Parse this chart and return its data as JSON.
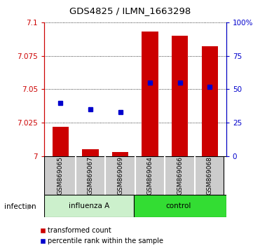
{
  "title": "GDS4825 / ILMN_1663298",
  "samples": [
    "GSM869065",
    "GSM869067",
    "GSM869069",
    "GSM869064",
    "GSM869066",
    "GSM869068"
  ],
  "transformed_counts": [
    7.022,
    7.005,
    7.003,
    7.093,
    7.09,
    7.082
  ],
  "percentile_ranks": [
    7.04,
    7.035,
    7.033,
    7.055,
    7.055,
    7.052
  ],
  "bar_bottom": 7.0,
  "ylim_left": [
    7.0,
    7.1
  ],
  "ylim_right": [
    0,
    100
  ],
  "yticks_left": [
    7.0,
    7.025,
    7.05,
    7.075,
    7.1
  ],
  "yticks_right": [
    0,
    25,
    50,
    75,
    100
  ],
  "ytick_labels_left": [
    "7",
    "7.025",
    "7.05",
    "7.075",
    "7.1"
  ],
  "ytick_labels_right": [
    "0",
    "25",
    "50",
    "75",
    "100%"
  ],
  "bar_color": "#cc0000",
  "dot_color": "#0000cc",
  "left_axis_color": "#cc0000",
  "right_axis_color": "#0000cc",
  "influenza_color": "#ccf0cc",
  "control_color": "#33dd33",
  "sample_box_color": "#cccccc",
  "title_fontsize": 9.5,
  "tick_fontsize": 7.5,
  "bar_width": 0.55
}
